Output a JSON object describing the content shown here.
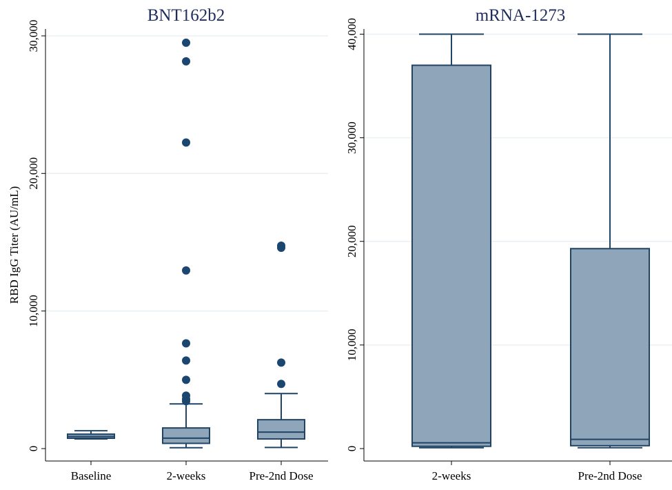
{
  "colors": {
    "box_fill": "#8fa5b9",
    "box_stroke": "#1f4466",
    "outlier": "#1a4670",
    "axis": "#000000",
    "grid": "#eaf0f4",
    "title": "#1f2d5a"
  },
  "chart_data": [
    {
      "type": "box",
      "title": "BNT162b2",
      "xlabel": "",
      "ylabel": "RBD IgG Titer (AU/mL)",
      "ylim": [
        0,
        30500
      ],
      "yticks": [
        0,
        10000,
        20000,
        30000
      ],
      "ytick_labels": [
        "0",
        "10,000",
        "20,000",
        "30,000"
      ],
      "grid": true,
      "categories": [
        "Baseline",
        "2-weeks",
        "Pre-2nd Dose"
      ],
      "boxes": [
        {
          "category": "Baseline",
          "whisker_low": 700,
          "q1": 750,
          "median": 880,
          "q3": 1050,
          "whisker_high": 1300,
          "outliers": []
        },
        {
          "category": "2-weeks",
          "whisker_low": 60,
          "q1": 380,
          "median": 760,
          "q3": 1500,
          "whisker_high": 3250,
          "outliers": [
            3450,
            3600,
            3850,
            5000,
            6400,
            7650,
            12950,
            22250,
            28150,
            29500
          ]
        },
        {
          "category": "Pre-2nd Dose",
          "whisker_low": 80,
          "q1": 700,
          "median": 1200,
          "q3": 2100,
          "whisker_high": 4000,
          "outliers": [
            4700,
            6250,
            14600,
            14750
          ]
        }
      ]
    },
    {
      "type": "box",
      "title": "mRNA-1273",
      "xlabel": "",
      "ylabel": "",
      "ylim": [
        0,
        40500
      ],
      "yticks": [
        0,
        10000,
        20000,
        30000,
        40000
      ],
      "ytick_labels": [
        "0",
        "10,000",
        "20,000",
        "30,000",
        "40,000"
      ],
      "grid": true,
      "categories": [
        "2-weeks",
        "Pre-2nd Dose"
      ],
      "boxes": [
        {
          "category": "2-weeks",
          "whisker_low": 80,
          "q1": 220,
          "median": 560,
          "q3": 37000,
          "whisker_high": 40000,
          "outliers": []
        },
        {
          "category": "Pre-2nd Dose",
          "whisker_low": 80,
          "q1": 280,
          "median": 890,
          "q3": 19300,
          "whisker_high": 40000,
          "outliers": []
        }
      ]
    }
  ]
}
